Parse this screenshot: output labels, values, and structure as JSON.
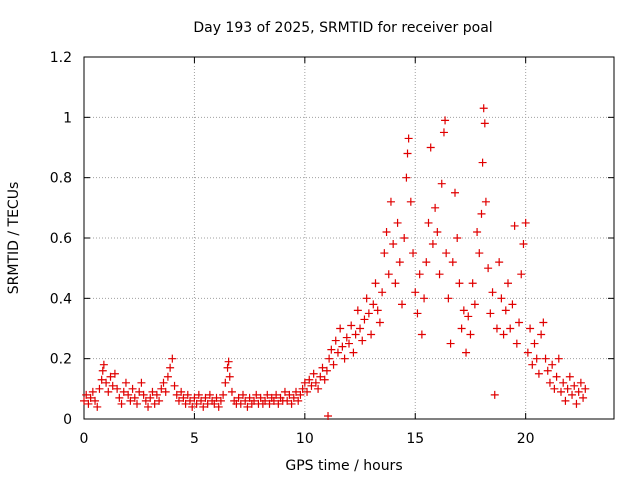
{
  "chart_data": {
    "type": "scatter",
    "title": "Day 193 of 2025, SRMTID for receiver poal",
    "xlabel": "GPS time / hours",
    "ylabel": "SRMTID / TECUs",
    "xlim": [
      0,
      24
    ],
    "ylim": [
      0,
      1.2
    ],
    "xticks": [
      0,
      5,
      10,
      15,
      20
    ],
    "xtick_labels": [
      "0",
      "5",
      "10",
      "15",
      "20"
    ],
    "yticks": [
      0,
      0.2,
      0.4,
      0.6,
      0.8,
      1.0,
      1.2
    ],
    "ytick_labels": [
      "0",
      "0.2",
      "0.4",
      "0.6",
      "0.8",
      "1",
      "1.2"
    ],
    "grid": true,
    "marker": "+",
    "series": [
      {
        "name": "poal",
        "color": "#e00000",
        "points": [
          [
            0.0,
            0.06
          ],
          [
            0.1,
            0.08
          ],
          [
            0.2,
            0.05
          ],
          [
            0.3,
            0.07
          ],
          [
            0.4,
            0.09
          ],
          [
            0.5,
            0.06
          ],
          [
            0.6,
            0.04
          ],
          [
            0.7,
            0.1
          ],
          [
            0.8,
            0.13
          ],
          [
            0.85,
            0.16
          ],
          [
            0.9,
            0.18
          ],
          [
            1.0,
            0.12
          ],
          [
            1.1,
            0.09
          ],
          [
            1.2,
            0.14
          ],
          [
            1.3,
            0.11
          ],
          [
            1.4,
            0.15
          ],
          [
            1.5,
            0.1
          ],
          [
            1.6,
            0.07
          ],
          [
            1.7,
            0.05
          ],
          [
            1.8,
            0.09
          ],
          [
            1.9,
            0.12
          ],
          [
            2.0,
            0.08
          ],
          [
            2.1,
            0.06
          ],
          [
            2.2,
            0.1
          ],
          [
            2.3,
            0.07
          ],
          [
            2.4,
            0.05
          ],
          [
            2.5,
            0.09
          ],
          [
            2.6,
            0.12
          ],
          [
            2.7,
            0.08
          ],
          [
            2.8,
            0.06
          ],
          [
            2.9,
            0.04
          ],
          [
            3.0,
            0.07
          ],
          [
            3.1,
            0.09
          ],
          [
            3.2,
            0.05
          ],
          [
            3.3,
            0.08
          ],
          [
            3.4,
            0.06
          ],
          [
            3.5,
            0.1
          ],
          [
            3.6,
            0.12
          ],
          [
            3.7,
            0.09
          ],
          [
            3.8,
            0.14
          ],
          [
            3.9,
            0.17
          ],
          [
            4.0,
            0.2
          ],
          [
            4.1,
            0.11
          ],
          [
            4.2,
            0.08
          ],
          [
            4.3,
            0.06
          ],
          [
            4.4,
            0.09
          ],
          [
            4.5,
            0.07
          ],
          [
            4.6,
            0.05
          ],
          [
            4.7,
            0.08
          ],
          [
            4.8,
            0.06
          ],
          [
            4.9,
            0.04
          ],
          [
            5.0,
            0.07
          ],
          [
            5.1,
            0.05
          ],
          [
            5.2,
            0.08
          ],
          [
            5.3,
            0.06
          ],
          [
            5.4,
            0.04
          ],
          [
            5.5,
            0.07
          ],
          [
            5.6,
            0.05
          ],
          [
            5.7,
            0.08
          ],
          [
            5.8,
            0.06
          ],
          [
            5.9,
            0.05
          ],
          [
            6.0,
            0.07
          ],
          [
            6.1,
            0.04
          ],
          [
            6.2,
            0.06
          ],
          [
            6.3,
            0.08
          ],
          [
            6.4,
            0.12
          ],
          [
            6.5,
            0.17
          ],
          [
            6.55,
            0.19
          ],
          [
            6.6,
            0.14
          ],
          [
            6.7,
            0.09
          ],
          [
            6.8,
            0.06
          ],
          [
            6.9,
            0.05
          ],
          [
            7.0,
            0.07
          ],
          [
            7.1,
            0.05
          ],
          [
            7.2,
            0.08
          ],
          [
            7.3,
            0.06
          ],
          [
            7.4,
            0.04
          ],
          [
            7.5,
            0.07
          ],
          [
            7.6,
            0.05
          ],
          [
            7.7,
            0.06
          ],
          [
            7.8,
            0.08
          ],
          [
            7.9,
            0.05
          ],
          [
            8.0,
            0.07
          ],
          [
            8.1,
            0.05
          ],
          [
            8.2,
            0.06
          ],
          [
            8.3,
            0.08
          ],
          [
            8.4,
            0.05
          ],
          [
            8.5,
            0.07
          ],
          [
            8.6,
            0.06
          ],
          [
            8.7,
            0.08
          ],
          [
            8.8,
            0.05
          ],
          [
            8.9,
            0.07
          ],
          [
            9.0,
            0.06
          ],
          [
            9.1,
            0.09
          ],
          [
            9.2,
            0.06
          ],
          [
            9.3,
            0.08
          ],
          [
            9.4,
            0.05
          ],
          [
            9.5,
            0.07
          ],
          [
            9.6,
            0.09
          ],
          [
            9.7,
            0.06
          ],
          [
            9.8,
            0.08
          ],
          [
            9.9,
            0.1
          ],
          [
            10.0,
            0.12
          ],
          [
            10.1,
            0.09
          ],
          [
            10.2,
            0.13
          ],
          [
            10.3,
            0.11
          ],
          [
            10.4,
            0.15
          ],
          [
            10.5,
            0.12
          ],
          [
            10.6,
            0.1
          ],
          [
            10.7,
            0.14
          ],
          [
            10.8,
            0.17
          ],
          [
            10.9,
            0.13
          ],
          [
            11.0,
            0.16
          ],
          [
            11.05,
            0.01
          ],
          [
            11.1,
            0.2
          ],
          [
            11.2,
            0.23
          ],
          [
            11.3,
            0.18
          ],
          [
            11.4,
            0.26
          ],
          [
            11.5,
            0.22
          ],
          [
            11.6,
            0.3
          ],
          [
            11.7,
            0.24
          ],
          [
            11.8,
            0.2
          ],
          [
            11.9,
            0.27
          ],
          [
            12.0,
            0.25
          ],
          [
            12.1,
            0.31
          ],
          [
            12.2,
            0.22
          ],
          [
            12.3,
            0.28
          ],
          [
            12.4,
            0.36
          ],
          [
            12.5,
            0.3
          ],
          [
            12.6,
            0.26
          ],
          [
            12.7,
            0.33
          ],
          [
            12.8,
            0.4
          ],
          [
            12.9,
            0.35
          ],
          [
            13.0,
            0.28
          ],
          [
            13.1,
            0.38
          ],
          [
            13.2,
            0.45
          ],
          [
            13.3,
            0.36
          ],
          [
            13.4,
            0.32
          ],
          [
            13.5,
            0.42
          ],
          [
            13.6,
            0.55
          ],
          [
            13.7,
            0.62
          ],
          [
            13.8,
            0.48
          ],
          [
            13.9,
            0.72
          ],
          [
            14.0,
            0.58
          ],
          [
            14.1,
            0.45
          ],
          [
            14.2,
            0.65
          ],
          [
            14.3,
            0.52
          ],
          [
            14.4,
            0.38
          ],
          [
            14.5,
            0.6
          ],
          [
            14.6,
            0.8
          ],
          [
            14.65,
            0.88
          ],
          [
            14.7,
            0.93
          ],
          [
            14.8,
            0.72
          ],
          [
            14.9,
            0.55
          ],
          [
            15.0,
            0.42
          ],
          [
            15.1,
            0.35
          ],
          [
            15.2,
            0.48
          ],
          [
            15.3,
            0.28
          ],
          [
            15.4,
            0.4
          ],
          [
            15.5,
            0.52
          ],
          [
            15.6,
            0.65
          ],
          [
            15.7,
            0.9
          ],
          [
            15.8,
            0.58
          ],
          [
            15.9,
            0.7
          ],
          [
            16.0,
            0.62
          ],
          [
            16.1,
            0.48
          ],
          [
            16.2,
            0.78
          ],
          [
            16.3,
            0.95
          ],
          [
            16.35,
            0.99
          ],
          [
            16.4,
            0.55
          ],
          [
            16.5,
            0.4
          ],
          [
            16.6,
            0.25
          ],
          [
            16.7,
            0.52
          ],
          [
            16.8,
            0.75
          ],
          [
            16.9,
            0.6
          ],
          [
            17.0,
            0.45
          ],
          [
            17.1,
            0.3
          ],
          [
            17.2,
            0.36
          ],
          [
            17.3,
            0.22
          ],
          [
            17.4,
            0.34
          ],
          [
            17.5,
            0.28
          ],
          [
            17.6,
            0.45
          ],
          [
            17.7,
            0.38
          ],
          [
            17.8,
            0.62
          ],
          [
            17.9,
            0.55
          ],
          [
            18.0,
            0.68
          ],
          [
            18.05,
            0.85
          ],
          [
            18.1,
            1.03
          ],
          [
            18.15,
            0.98
          ],
          [
            18.2,
            0.72
          ],
          [
            18.3,
            0.5
          ],
          [
            18.4,
            0.35
          ],
          [
            18.5,
            0.42
          ],
          [
            18.6,
            0.08
          ],
          [
            18.7,
            0.3
          ],
          [
            18.8,
            0.52
          ],
          [
            18.9,
            0.4
          ],
          [
            19.0,
            0.28
          ],
          [
            19.1,
            0.36
          ],
          [
            19.2,
            0.45
          ],
          [
            19.3,
            0.3
          ],
          [
            19.4,
            0.38
          ],
          [
            19.5,
            0.64
          ],
          [
            19.6,
            0.25
          ],
          [
            19.7,
            0.32
          ],
          [
            19.8,
            0.48
          ],
          [
            19.9,
            0.58
          ],
          [
            20.0,
            0.65
          ],
          [
            20.1,
            0.22
          ],
          [
            20.2,
            0.3
          ],
          [
            20.3,
            0.18
          ],
          [
            20.4,
            0.25
          ],
          [
            20.5,
            0.2
          ],
          [
            20.6,
            0.15
          ],
          [
            20.7,
            0.28
          ],
          [
            20.8,
            0.32
          ],
          [
            20.9,
            0.2
          ],
          [
            21.0,
            0.16
          ],
          [
            21.1,
            0.12
          ],
          [
            21.2,
            0.18
          ],
          [
            21.3,
            0.1
          ],
          [
            21.4,
            0.14
          ],
          [
            21.5,
            0.2
          ],
          [
            21.6,
            0.09
          ],
          [
            21.7,
            0.12
          ],
          [
            21.8,
            0.06
          ],
          [
            21.9,
            0.1
          ],
          [
            22.0,
            0.14
          ],
          [
            22.1,
            0.08
          ],
          [
            22.2,
            0.11
          ],
          [
            22.3,
            0.05
          ],
          [
            22.4,
            0.09
          ],
          [
            22.5,
            0.12
          ],
          [
            22.6,
            0.07
          ],
          [
            22.7,
            0.1
          ]
        ]
      }
    ]
  }
}
